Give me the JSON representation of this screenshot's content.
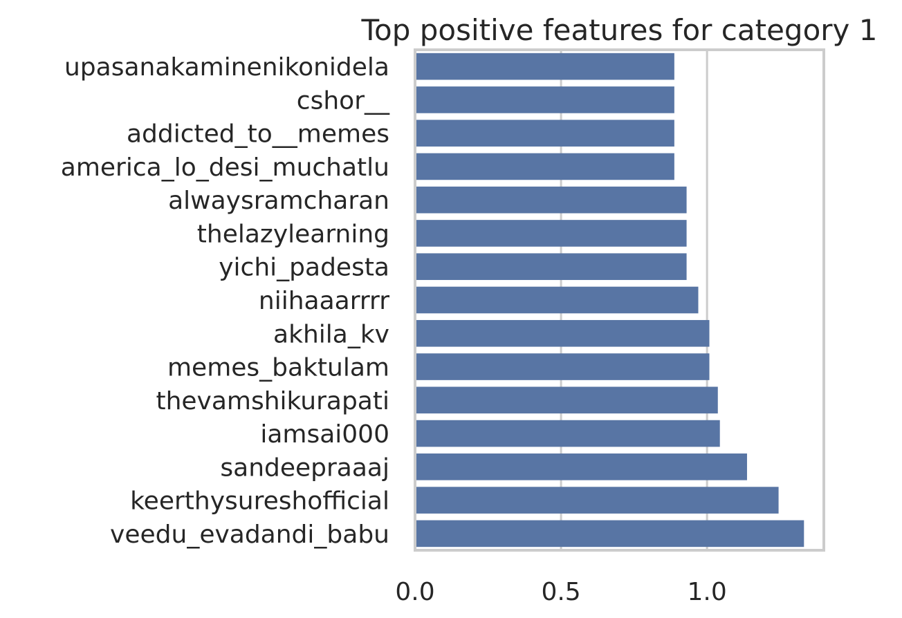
{
  "chart_data": {
    "type": "bar",
    "orientation": "horizontal",
    "title": "Top positive features for category 1",
    "xlabel": "",
    "ylabel": "",
    "xlim": [
      0,
      1.4
    ],
    "xticks": [
      "0.0",
      "0.5",
      "1.0"
    ],
    "grid": true,
    "colors": {
      "bar": "#5875a4",
      "grid": "#cccccc",
      "frame": "#cccccc",
      "text": "#262626"
    },
    "categories": [
      "upasanakaminenikonidela",
      "cshor__",
      "addicted_to__memes",
      "america_lo_desi_muchatlu",
      "alwaysramcharan",
      "thelazylearning",
      "yichi_padesta",
      "niihaaarrrr",
      "akhila_kv",
      "memes_baktulam",
      "thevamshikurapati",
      "iamsai000",
      "sandeepraaaj",
      "keerthysureshofficial",
      "veedu_evadandi_babu"
    ],
    "values": [
      0.888,
      0.888,
      0.888,
      0.888,
      0.93,
      0.93,
      0.93,
      0.97,
      1.008,
      1.008,
      1.037,
      1.044,
      1.137,
      1.245,
      1.332
    ]
  }
}
